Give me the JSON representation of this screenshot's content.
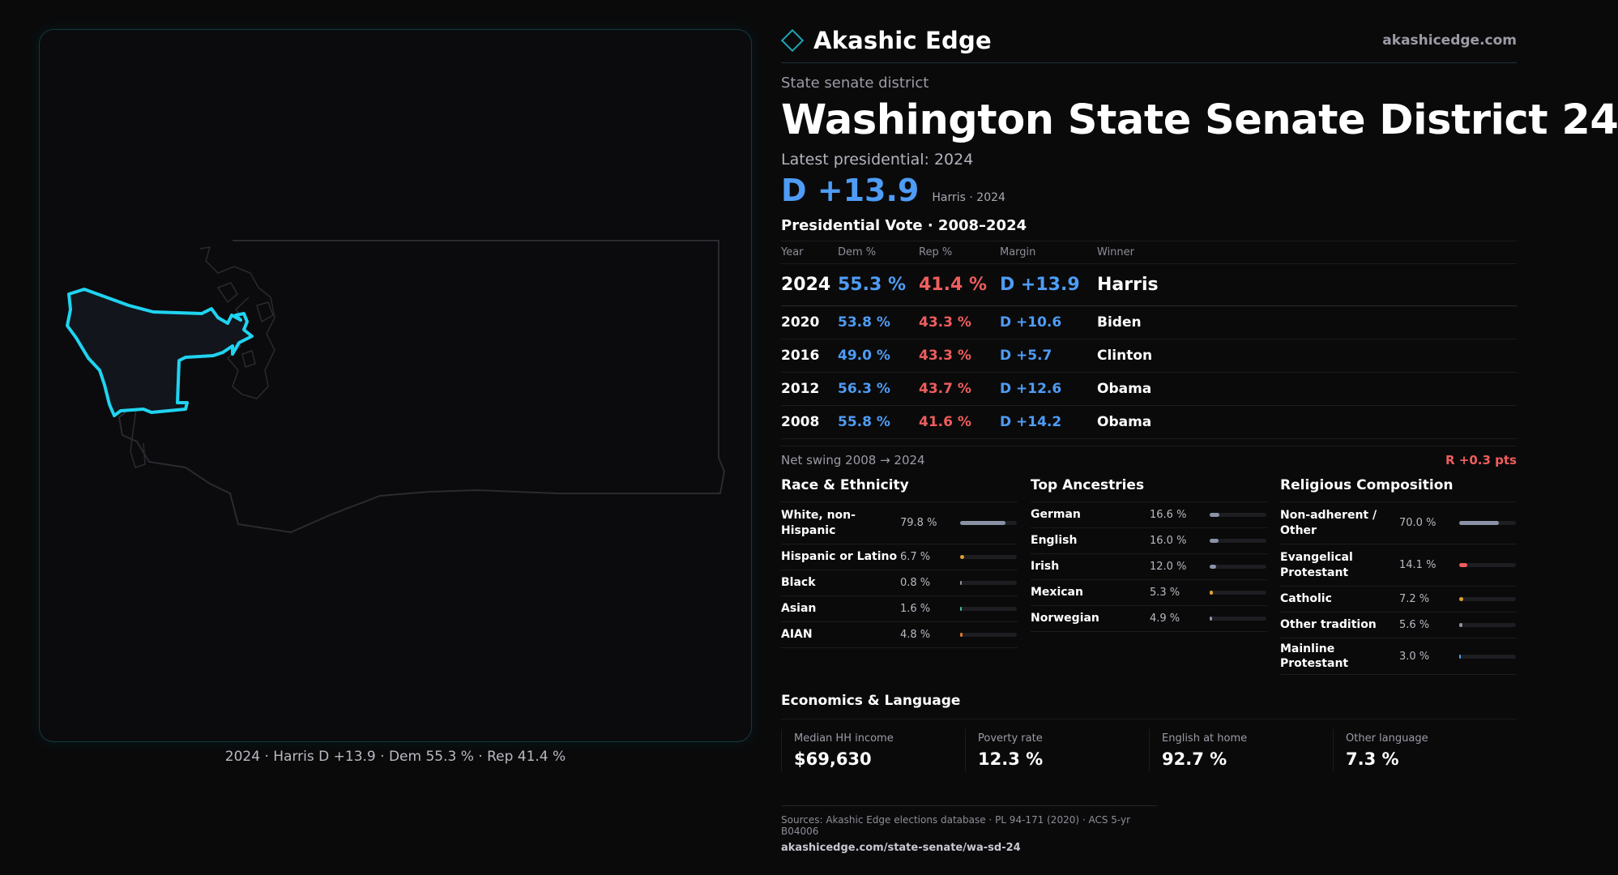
{
  "brand": {
    "name": "Akashic Edge",
    "url": "akashicedge.com",
    "logo_icon": "diamond-logo-icon"
  },
  "header": {
    "kicker": "State senate district",
    "title": "Washington State Senate District 24",
    "latest": "Latest presidential: 2024",
    "margin": "D +13.9",
    "margin_sub": "Harris · 2024"
  },
  "votes": {
    "heading": "Presidential Vote · 2008–2024",
    "columns": [
      "Year",
      "Dem %",
      "Rep %",
      "Margin",
      "Winner"
    ],
    "rows": [
      {
        "year": "2024",
        "dem": "55.3 %",
        "rep": "41.4 %",
        "margin": "D +13.9",
        "winner": "Harris"
      },
      {
        "year": "2020",
        "dem": "53.8 %",
        "rep": "43.3 %",
        "margin": "D +10.6",
        "winner": "Biden"
      },
      {
        "year": "2016",
        "dem": "49.0 %",
        "rep": "43.3 %",
        "margin": "D +5.7",
        "winner": "Clinton"
      },
      {
        "year": "2012",
        "dem": "56.3 %",
        "rep": "43.7 %",
        "margin": "D +12.6",
        "winner": "Obama"
      },
      {
        "year": "2008",
        "dem": "55.8 %",
        "rep": "41.6 %",
        "margin": "D +14.2",
        "winner": "Obama"
      }
    ]
  },
  "swing": {
    "label": "Net swing 2008 → 2024",
    "value": "R +0.3 pts"
  },
  "race": {
    "heading": "Race & Ethnicity",
    "items": [
      {
        "label": "White, non-Hispanic",
        "value": "79.8 %",
        "fraction": 0.798,
        "color": "#8a93a6"
      },
      {
        "label": "Hispanic or Latino",
        "value": "6.7 %",
        "fraction": 0.067,
        "color": "#e0a030"
      },
      {
        "label": "Black",
        "value": "0.8 %",
        "fraction": 0.008,
        "color": "#8a93a6"
      },
      {
        "label": "Asian",
        "value": "1.6 %",
        "fraction": 0.016,
        "color": "#3fbf8f"
      },
      {
        "label": "AIAN",
        "value": "4.8 %",
        "fraction": 0.048,
        "color": "#e07a30"
      }
    ]
  },
  "ancestry": {
    "heading": "Top Ancestries",
    "items": [
      {
        "label": "German",
        "value": "16.6 %",
        "fraction": 0.166,
        "color": "#8a93a6"
      },
      {
        "label": "English",
        "value": "16.0 %",
        "fraction": 0.16,
        "color": "#8a93a6"
      },
      {
        "label": "Irish",
        "value": "12.0 %",
        "fraction": 0.12,
        "color": "#8a93a6"
      },
      {
        "label": "Mexican",
        "value": "5.3 %",
        "fraction": 0.053,
        "color": "#e0a030"
      },
      {
        "label": "Norwegian",
        "value": "4.9 %",
        "fraction": 0.049,
        "color": "#8a93a6"
      }
    ]
  },
  "religion": {
    "heading": "Religious Composition",
    "items": [
      {
        "label": "Non-adherent / Other",
        "value": "70.0 %",
        "fraction": 0.7,
        "color": "#8a93a6"
      },
      {
        "label": "Evangelical Protestant",
        "value": "14.1 %",
        "fraction": 0.141,
        "color": "#ef5d5d"
      },
      {
        "label": "Catholic",
        "value": "7.2 %",
        "fraction": 0.072,
        "color": "#e0a030"
      },
      {
        "label": "Other tradition",
        "value": "5.6 %",
        "fraction": 0.056,
        "color": "#8a93a6"
      },
      {
        "label": "Mainline Protestant",
        "value": "3.0 %",
        "fraction": 0.03,
        "color": "#4e9cf5"
      }
    ]
  },
  "economics": {
    "heading": "Economics & Language",
    "cards": [
      {
        "label": "Median HH income",
        "value": "$69,630"
      },
      {
        "label": "Poverty rate",
        "value": "12.3 %"
      },
      {
        "label": "English at home",
        "value": "92.7 %"
      },
      {
        "label": "Other language",
        "value": "7.3 %"
      }
    ]
  },
  "map": {
    "caption": "2024 · Harris D +13.9 · Dem 55.3 % · Rep 41.4 %",
    "highlight_color": "#1fd4f0"
  },
  "footer": {
    "sources": "Sources: Akashic Edge elections database · PL 94-171 (2020) · ACS 5-yr B04006",
    "link": "akashicedge.com/state-senate/wa-sd-24"
  }
}
